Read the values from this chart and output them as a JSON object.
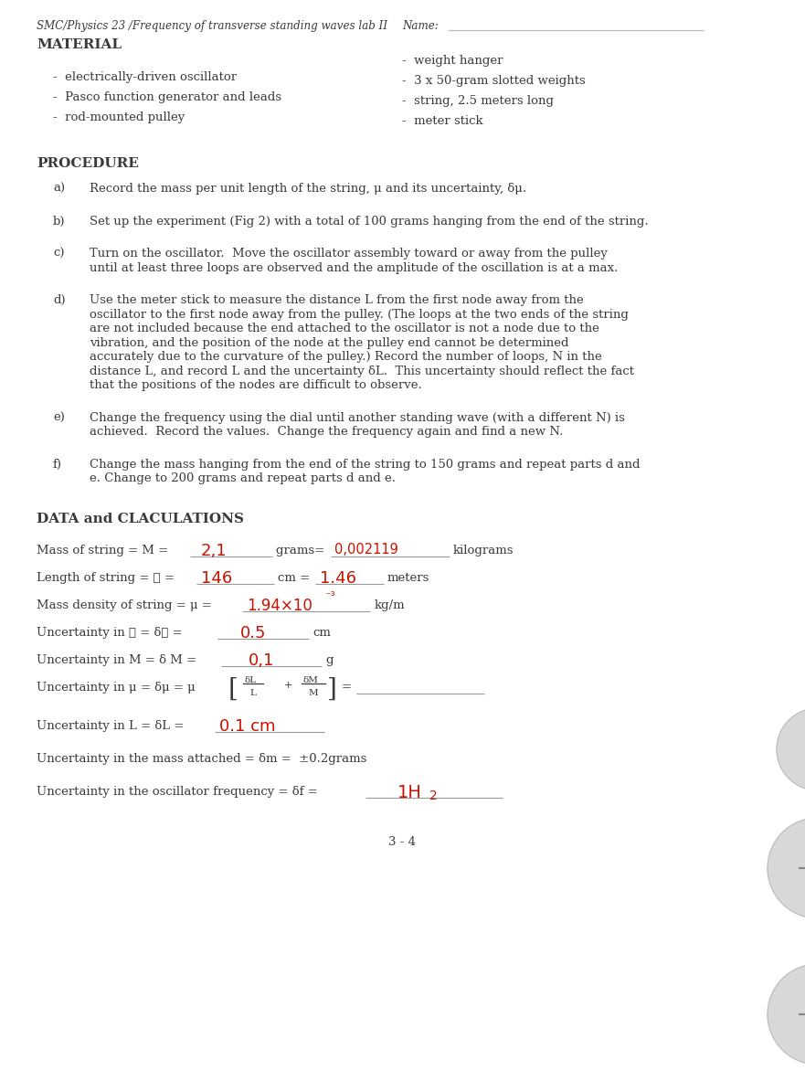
{
  "title_left": "SMC/Physics 23 /Frequency of transverse standing waves lab II",
  "title_right": "Name:",
  "material_header": "MATERIAL",
  "material_left": [
    "electrically-driven oscillator",
    "Pasco function generator and leads",
    "rod-mounted pulley"
  ],
  "material_right": [
    "weight hanger",
    "3 x 50-gram slotted weights",
    "string, 2.5 meters long",
    "meter stick"
  ],
  "procedure_header": "PROCEDURE",
  "data_header": "DATA and CLACULATIONS",
  "footer": "3 - 4",
  "bg_color": "#ffffff",
  "text_color": "#3a3a3a",
  "handwriting_color": "#cc1100",
  "base_fs": 9.5,
  "bold_header_fs": 11.0,
  "title_fs": 8.6
}
